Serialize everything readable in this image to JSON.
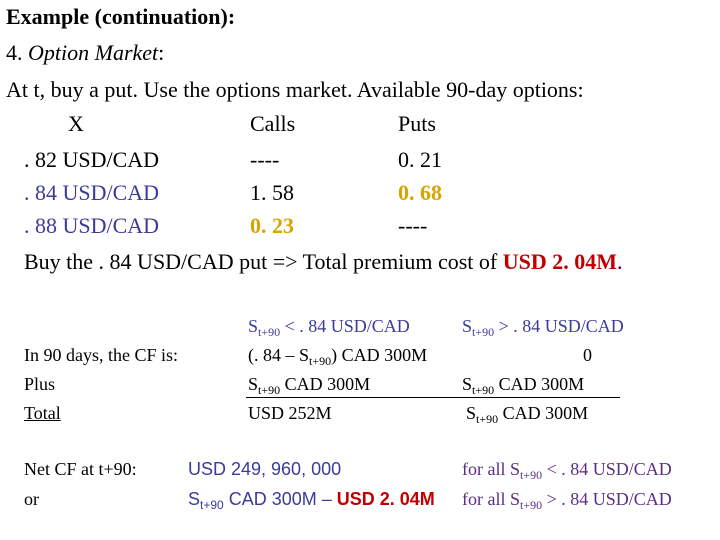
{
  "title": "Example (continuation):",
  "subtitle": {
    "number": "4.",
    "label": "Option Market",
    "colon": ":"
  },
  "intro": "At t, buy a put. Use the options market. Available 90-day options:",
  "options_table": {
    "headers": {
      "strike": "X",
      "calls": "Calls",
      "puts": "Puts"
    },
    "rows": [
      {
        "strike": ". 82 USD/CAD",
        "call": "----",
        "put": "0. 21"
      },
      {
        "strike": ". 84 USD/CAD",
        "call": "1. 58",
        "put": "0. 68"
      },
      {
        "strike": ". 88 USD/CAD",
        "call": "0. 23",
        "put": "----"
      }
    ]
  },
  "buy_line": {
    "text": "Buy the . 84 USD/CAD put => Total premium cost of ",
    "amount": "USD 2. 04M",
    "end": "."
  },
  "cf_table": {
    "col1_header": {
      "s": "S",
      "sub": "t+90",
      "rest": " < . 84 USD/CAD"
    },
    "col2_header": {
      "s": "S",
      "sub": "t+90",
      "rest": " > . 84 USD/CAD"
    },
    "row_cf": {
      "label": "In 90 days, the CF is:",
      "c1_pre": "(. 84 – S",
      "c1_sub": "t+90",
      "c1_post": ") CAD 300M",
      "c2": "0"
    },
    "row_plus": {
      "label": "Plus",
      "c1_s": "S",
      "c1_sub": "t+90",
      "c1_post": " CAD 300M",
      "c2_s": "S",
      "c2_sub": "t+90",
      "c2_post": " CAD  300M"
    },
    "row_total": {
      "label": "Total",
      "c1": "USD 252M",
      "c2_s": "S",
      "c2_sub": "t+90",
      "c2_post": " CAD 300M"
    }
  },
  "net_cf": {
    "label": "Net CF at t+90:",
    "value": "USD 249, 960, 000",
    "cond1": {
      "pre": "for all S",
      "sub": "t+90",
      "post": " < . 84 USD/CAD"
    },
    "or_label": "or",
    "alt_s": "S",
    "alt_sub": "t+90",
    "alt_mid": " CAD 300M – ",
    "alt_amount": "USD 2. 04M",
    "cond2": {
      "pre": "for all S",
      "sub": "t+90",
      "post": " > . 84 USD/CAD"
    }
  },
  "colors": {
    "blue": "#3b3b9a",
    "purple": "#5a2e82",
    "gold": "#d9a400",
    "red": "#c00000"
  }
}
